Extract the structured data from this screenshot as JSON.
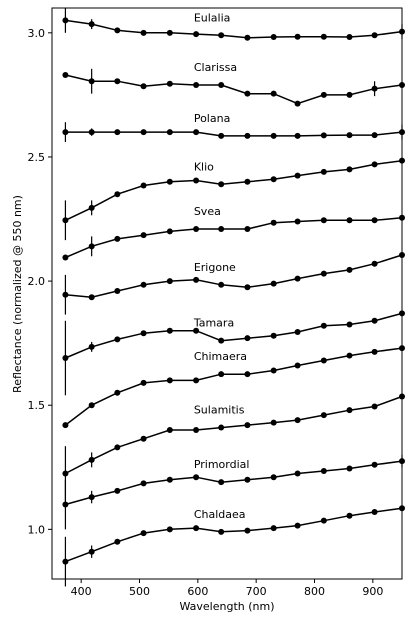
{
  "chart_data": {
    "type": "line",
    "title": "",
    "xlabel": "Wavelength (nm)",
    "ylabel": "Reflectance (normalized @ 550 nm)",
    "xlim": [
      350,
      950
    ],
    "ylim": [
      0.8,
      3.1
    ],
    "xticks": [
      400,
      500,
      600,
      700,
      800,
      900
    ],
    "yticks": [
      1.0,
      1.5,
      2.0,
      2.5,
      3.0
    ],
    "xtick_labels": [
      "400",
      "500",
      "600",
      "700",
      "800",
      "900"
    ],
    "ytick_labels": [
      "1.0",
      "1.5",
      "2.0",
      "2.5",
      "3.0"
    ],
    "grid": false,
    "x": [
      373,
      418,
      462,
      507,
      552,
      597,
      640,
      685,
      730,
      771,
      816,
      860,
      903,
      950
    ],
    "series": [
      {
        "name": "Eulalia",
        "label_x": 600,
        "values": [
          3.05,
          3.035,
          3.01,
          3.0,
          3.0,
          2.995,
          2.99,
          2.98,
          2.983,
          2.984,
          2.984,
          2.983,
          2.99,
          3.005
        ],
        "errors": [
          [
            0,
            0.05
          ],
          [
            1,
            0.02
          ],
          [
            13,
            0.03
          ]
        ]
      },
      {
        "name": "Clarissa",
        "label_x": 600,
        "values": [
          2.83,
          2.805,
          2.805,
          2.785,
          2.795,
          2.79,
          2.79,
          2.755,
          2.755,
          2.715,
          2.75,
          2.75,
          2.775,
          2.79
        ],
        "errors": [
          [
            1,
            0.05
          ],
          [
            12,
            0.03
          ]
        ]
      },
      {
        "name": "Polana",
        "label_x": 600,
        "values": [
          2.6,
          2.6,
          2.6,
          2.6,
          2.6,
          2.6,
          2.585,
          2.585,
          2.585,
          2.585,
          2.587,
          2.588,
          2.588,
          2.6
        ],
        "errors": [
          [
            0,
            0.04
          ],
          [
            1,
            0.015
          ],
          [
            13,
            0.03
          ]
        ]
      },
      {
        "name": "Klio",
        "label_x": 600,
        "values": [
          2.245,
          2.295,
          2.35,
          2.385,
          2.4,
          2.405,
          2.39,
          2.4,
          2.41,
          2.425,
          2.44,
          2.45,
          2.47,
          2.485
        ],
        "errors": [
          [
            0,
            0.08
          ],
          [
            1,
            0.03
          ]
        ]
      },
      {
        "name": "Svea",
        "label_x": 600,
        "values": [
          2.095,
          2.14,
          2.17,
          2.185,
          2.2,
          2.21,
          2.21,
          2.21,
          2.235,
          2.24,
          2.245,
          2.245,
          2.245,
          2.255
        ],
        "errors": [
          [
            1,
            0.04
          ]
        ]
      },
      {
        "name": "Erigone",
        "label_x": 600,
        "values": [
          1.945,
          1.935,
          1.96,
          1.985,
          2.0,
          2.005,
          1.985,
          1.975,
          1.99,
          2.01,
          2.03,
          2.045,
          2.07,
          2.105
        ],
        "errors": [
          [
            0,
            0.08
          ]
        ]
      },
      {
        "name": "Tamara",
        "label_x": 600,
        "values": [
          1.69,
          1.735,
          1.765,
          1.79,
          1.8,
          1.8,
          1.76,
          1.77,
          1.78,
          1.795,
          1.82,
          1.825,
          1.84,
          1.87
        ],
        "errors": [
          [
            0,
            0.15
          ],
          [
            1,
            0.02
          ]
        ]
      },
      {
        "name": "Chimaera",
        "label_x": 600,
        "values": [
          1.42,
          1.5,
          1.55,
          1.59,
          1.6,
          1.6,
          1.625,
          1.625,
          1.64,
          1.66,
          1.68,
          1.7,
          1.715,
          1.73
        ],
        "errors": []
      },
      {
        "name": "Sulamitis",
        "label_x": 600,
        "values": [
          1.225,
          1.28,
          1.33,
          1.365,
          1.4,
          1.4,
          1.41,
          1.42,
          1.43,
          1.44,
          1.46,
          1.48,
          1.495,
          1.535
        ],
        "errors": [
          [
            0,
            0.11
          ],
          [
            1,
            0.03
          ]
        ]
      },
      {
        "name": "Primordial",
        "label_x": 600,
        "values": [
          1.1,
          1.13,
          1.155,
          1.185,
          1.2,
          1.21,
          1.19,
          1.2,
          1.21,
          1.225,
          1.235,
          1.245,
          1.26,
          1.275
        ],
        "errors": [
          [
            0,
            0.1
          ],
          [
            1,
            0.025
          ],
          [
            13,
            0.025
          ]
        ]
      },
      {
        "name": "Chaldaea",
        "label_x": 600,
        "values": [
          0.87,
          0.91,
          0.95,
          0.985,
          1.0,
          1.005,
          0.99,
          0.995,
          1.005,
          1.015,
          1.035,
          1.055,
          1.07,
          1.085
        ],
        "errors": [
          [
            0,
            0.1
          ],
          [
            1,
            0.025
          ]
        ]
      }
    ]
  }
}
